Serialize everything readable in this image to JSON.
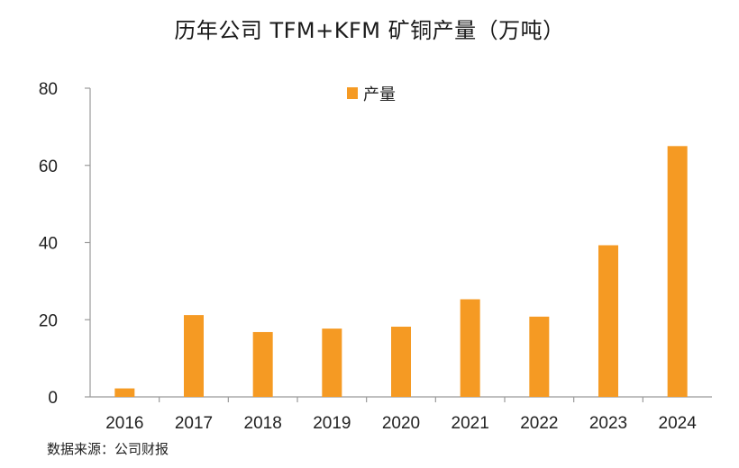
{
  "title": "历年公司 TFM+KFM 矿铜产量（万吨）",
  "source": "数据来源：公司财报",
  "colors": {
    "bar": "#F59A23",
    "axis": "#9a9a9a"
  },
  "chart_data": {
    "type": "bar",
    "title": "历年公司 TFM+KFM 矿铜产量（万吨）",
    "xlabel": "",
    "ylabel": "",
    "categories": [
      "2016",
      "2017",
      "2018",
      "2019",
      "2020",
      "2021",
      "2022",
      "2023",
      "2024"
    ],
    "series": [
      {
        "name": "产量",
        "values": [
          2.2,
          21.2,
          16.8,
          17.7,
          18.2,
          25.3,
          20.8,
          39.3,
          65.0
        ]
      }
    ],
    "ylim": [
      0,
      80
    ],
    "yticks": [
      "0",
      "20",
      "40",
      "60",
      "80"
    ],
    "grid": false,
    "legend": "top-center"
  }
}
